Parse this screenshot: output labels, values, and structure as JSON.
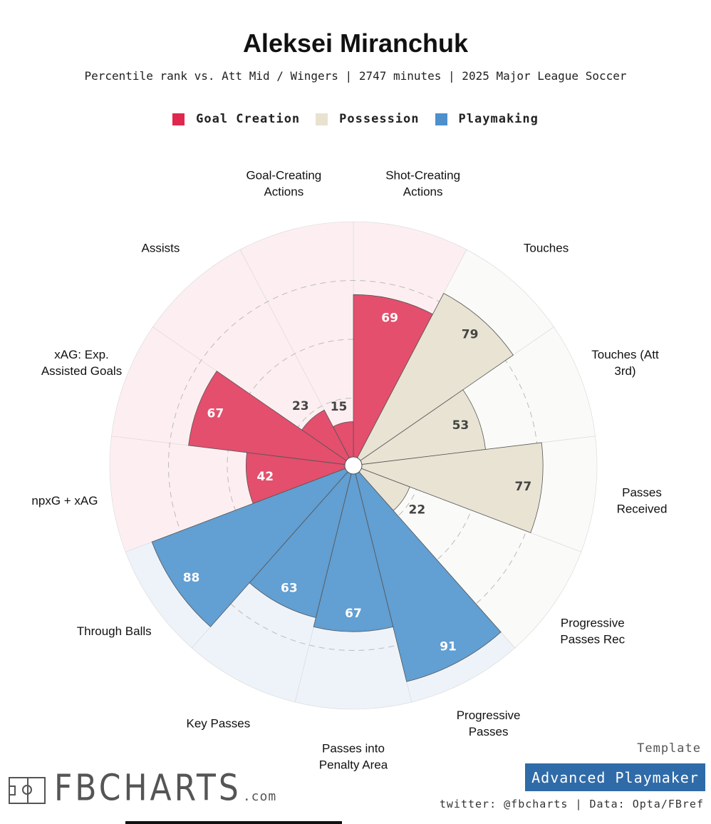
{
  "title": "Aleksei Miranchuk",
  "subtitle": "Percentile rank vs. Att Mid / Wingers | 2747 minutes | 2025 Major League Soccer",
  "legend": [
    {
      "label": "Goal Creation",
      "color": "#e0274d"
    },
    {
      "label": "Possession",
      "color": "#e8e2cf"
    },
    {
      "label": "Playmaking",
      "color": "#4d90cc"
    }
  ],
  "template_label": "Template",
  "template_name": "Advanced Playmaker",
  "credit": "twitter: @fbcharts | Data: Opta/FBref",
  "logo": {
    "text": "FBCHARTS",
    "suffix": ".com"
  },
  "chart_data": {
    "type": "polar_bar",
    "title": "Aleksei Miranchuk",
    "range": [
      0,
      100
    ],
    "categories": [
      {
        "label": "Shot-Creating Actions",
        "lines": [
          "Shot-Creating",
          "Actions"
        ],
        "value": 69,
        "group": "Goal Creation"
      },
      {
        "label": "Touches",
        "lines": [
          "Touches"
        ],
        "value": 79,
        "group": "Possession"
      },
      {
        "label": "Touches (Att 3rd)",
        "lines": [
          "Touches (Att",
          "3rd)"
        ],
        "value": 53,
        "group": "Possession"
      },
      {
        "label": "Passes Received",
        "lines": [
          "Passes",
          "Received"
        ],
        "value": 77,
        "group": "Possession"
      },
      {
        "label": "Progressive Passes Rec",
        "lines": [
          "Progressive",
          "Passes Rec"
        ],
        "value": 22,
        "group": "Possession"
      },
      {
        "label": "Progressive Passes",
        "lines": [
          "Progressive",
          "Passes"
        ],
        "value": 91,
        "group": "Playmaking"
      },
      {
        "label": "Passes into Penalty Area",
        "lines": [
          "Passes into",
          "Penalty Area"
        ],
        "value": 67,
        "group": "Playmaking"
      },
      {
        "label": "Key Passes",
        "lines": [
          "Key Passes"
        ],
        "value": 63,
        "group": "Playmaking"
      },
      {
        "label": "Through Balls",
        "lines": [
          "Through Balls"
        ],
        "value": 88,
        "group": "Playmaking"
      },
      {
        "label": "npxG + xAG",
        "lines": [
          "npxG + xAG"
        ],
        "value": 42,
        "group": "Goal Creation"
      },
      {
        "label": "xAG: Exp. Assisted Goals",
        "lines": [
          "xAG: Exp.",
          "Assisted Goals"
        ],
        "value": 67,
        "group": "Goal Creation"
      },
      {
        "label": "Assists",
        "lines": [
          "Assists"
        ],
        "value": 23,
        "group": "Goal Creation"
      },
      {
        "label": "Goal-Creating Actions",
        "lines": [
          "Goal-Creating",
          "Actions"
        ],
        "value": 15,
        "group": "Goal Creation"
      }
    ],
    "group_colors": {
      "Goal Creation": {
        "bar": "#e34f6d",
        "bg": "#fdeff1"
      },
      "Possession": {
        "bar": "#e8e3d3",
        "bg": "#fafaf8"
      },
      "Playmaking": {
        "bar": "#629fd2",
        "bg": "#eef3fa"
      }
    },
    "gridlines": [
      25,
      50,
      75
    ]
  }
}
